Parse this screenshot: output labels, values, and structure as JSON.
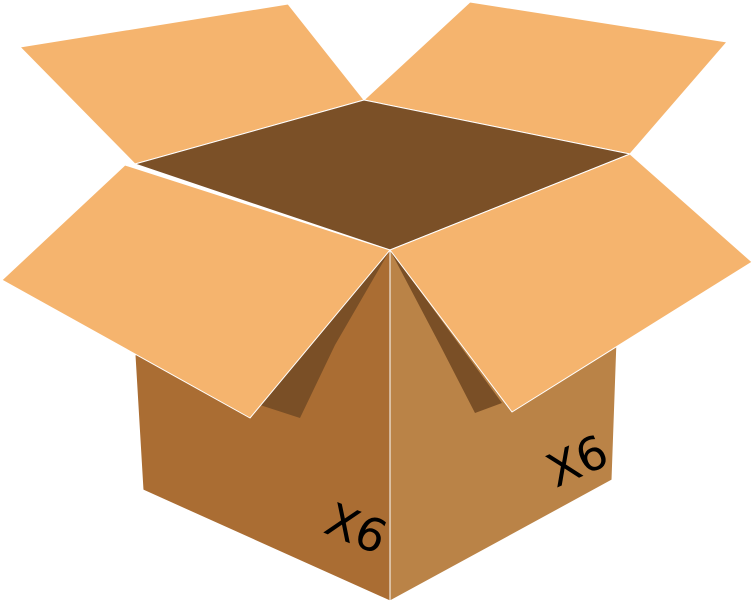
{
  "box": {
    "left_label": "X6",
    "right_label": "X6"
  },
  "colors": {
    "flap": "#F5B46E",
    "interior": "#7B5027",
    "inner_shadow": "#7A4F26",
    "left_side": "#AA6D33",
    "right_side": "#BA8347",
    "edge": "#FFFFFF",
    "label": "#000000"
  }
}
